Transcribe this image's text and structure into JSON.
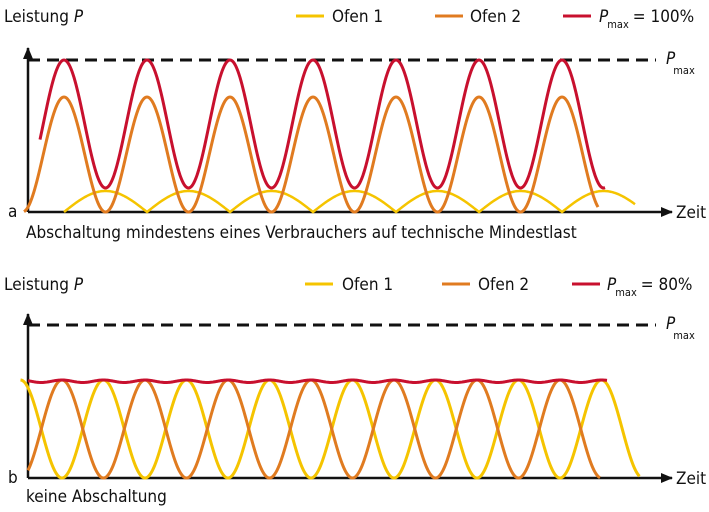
{
  "panels": [
    {
      "label": "a",
      "y_axis_label": "Leistung",
      "y_axis_symbol": "P",
      "legend": [
        "Ofen 1",
        "Ofen 2",
        {
          "symbol": "P",
          "subscript": "max",
          "text": "= 100%"
        }
      ],
      "pmax_label": {
        "symbol": "P",
        "subscript": "max"
      },
      "x_axis_label": "Zeit",
      "caption": "Abschaltung mindestens eines Verbrauchers auf technische Mindestlast"
    },
    {
      "label": "b",
      "y_axis_label": "Leistung",
      "y_axis_symbol": "P",
      "legend": [
        "Ofen 1",
        "Ofen 2",
        {
          "symbol": "P",
          "subscript": "max",
          "text": "= 80%"
        }
      ],
      "pmax_label": {
        "symbol": "P",
        "subscript": "max"
      },
      "x_axis_label": "Zeit",
      "caption": "keine Abschaltung"
    }
  ]
}
